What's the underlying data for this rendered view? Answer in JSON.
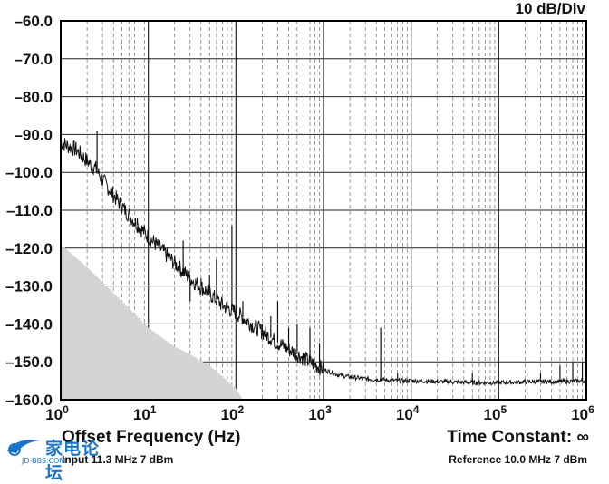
{
  "scale_label": "10 dB/Div",
  "xlabel": "Offset Frequency (Hz)",
  "time_constant": "Time Constant: ∞",
  "input_note": "Input 11.3 MHz 7 dBm",
  "reference_note": "Reference 10.0 MHz 7 dBm",
  "watermark": {
    "text": "家电论坛",
    "sub": "JD-BBS.COM"
  },
  "colors": {
    "trace": "#111111",
    "floor": "#d4d4d4",
    "grid": "#555555",
    "axis": "#000000",
    "brand": "#1a74c9"
  },
  "chart_data": {
    "type": "line",
    "xscale": "log",
    "xlim": [
      1,
      1000000
    ],
    "ylim": [
      -160,
      -60
    ],
    "grid": true,
    "ytick_labels": [
      "-60.0",
      "-70.0",
      "-80.0",
      "-90.0",
      "-100.0",
      "-110.0",
      "-120.0",
      "-130.0",
      "-140.0",
      "-150.0",
      "-160.0"
    ],
    "xtick_labels": [
      {
        "base": "10",
        "exp": "0"
      },
      {
        "base": "10",
        "exp": "1"
      },
      {
        "base": "10",
        "exp": "2"
      },
      {
        "base": "10",
        "exp": "3"
      },
      {
        "base": "10",
        "exp": "4"
      },
      {
        "base": "10",
        "exp": "5"
      },
      {
        "base": "10",
        "exp": "6"
      }
    ],
    "series": [
      {
        "role": "phase-noise-trace",
        "x": [
          1,
          1.2,
          1.5,
          2,
          2.5,
          3,
          4,
          5,
          7,
          10,
          15,
          20,
          30,
          50,
          70,
          100,
          150,
          200,
          300,
          500,
          700,
          1000,
          1500,
          2000,
          3000,
          5000,
          7000,
          10000,
          20000,
          50000,
          100000,
          200000,
          500000,
          1000000
        ],
        "y": [
          -92,
          -93,
          -94,
          -97,
          -99,
          -102,
          -106,
          -109,
          -113,
          -117,
          -121,
          -124,
          -128,
          -132,
          -135,
          -137,
          -140,
          -142,
          -145,
          -148,
          -150,
          -152,
          -153.5,
          -154,
          -154.5,
          -154.8,
          -155,
          -155,
          -155.2,
          -155.5,
          -155.5,
          -155.3,
          -155.2,
          -155
        ]
      },
      {
        "role": "measurement-floor",
        "x": [
          1,
          2,
          3,
          5,
          10,
          20,
          30,
          50,
          100,
          120
        ],
        "y": [
          -119,
          -125,
          -129,
          -134,
          -141,
          -146,
          -148,
          -151,
          -157,
          -160
        ]
      }
    ],
    "spurs": [
      {
        "x": 2.6,
        "y": -89
      },
      {
        "x": 5,
        "y": -110
      },
      {
        "x": 7.5,
        "y": -112
      },
      {
        "x": 12,
        "y": -118
      },
      {
        "x": 25,
        "y": -118
      },
      {
        "x": 30,
        "y": -134
      },
      {
        "x": 40,
        "y": -128
      },
      {
        "x": 50,
        "y": -127
      },
      {
        "x": 60,
        "y": -123
      },
      {
        "x": 90,
        "y": -114
      },
      {
        "x": 120,
        "y": -134
      },
      {
        "x": 200,
        "y": -140
      },
      {
        "x": 250,
        "y": -138
      },
      {
        "x": 300,
        "y": -134
      },
      {
        "x": 400,
        "y": -141
      },
      {
        "x": 500,
        "y": -140
      },
      {
        "x": 700,
        "y": -141
      },
      {
        "x": 900,
        "y": -145
      },
      {
        "x": 4500,
        "y": -141
      },
      {
        "x": 7000,
        "y": -153
      },
      {
        "x": 50000,
        "y": -153
      },
      {
        "x": 300000,
        "y": -153
      },
      {
        "x": 500000,
        "y": -151
      },
      {
        "x": 700000,
        "y": -150
      },
      {
        "x": 900000,
        "y": -150
      }
    ]
  }
}
